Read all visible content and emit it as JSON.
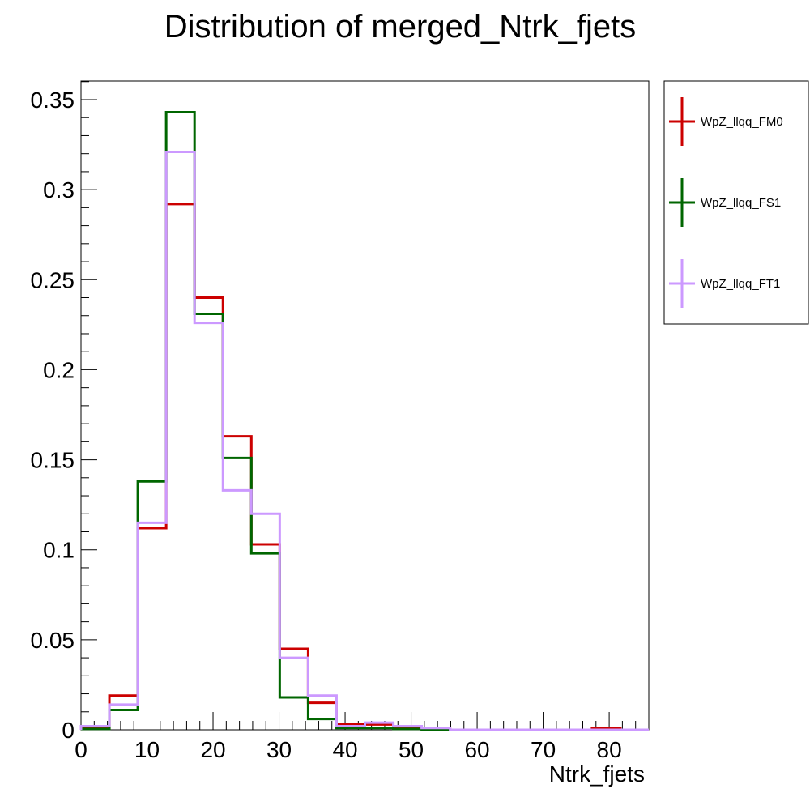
{
  "chart_data": {
    "type": "line",
    "step": true,
    "title": "Distribution of merged_Ntrk_fjets",
    "xlabel": "Ntrk_fjets",
    "ylabel": "",
    "xlim": [
      0,
      86
    ],
    "ylim": [
      0,
      0.36
    ],
    "x_ticks": [
      0,
      10,
      20,
      30,
      40,
      50,
      60,
      70,
      80
    ],
    "x_tick_labels": [
      "0",
      "10",
      "20",
      "30",
      "40",
      "50",
      "60",
      "70",
      "80"
    ],
    "y_ticks": [
      0,
      0.05,
      0.1,
      0.15,
      0.2,
      0.25,
      0.3,
      0.35
    ],
    "y_tick_labels": [
      "0",
      "0.05",
      "0.1",
      "0.15",
      "0.2",
      "0.25",
      "0.3",
      "0.35"
    ],
    "bin_edges": [
      0,
      4.3,
      8.6,
      12.9,
      17.2,
      21.5,
      25.8,
      30.1,
      34.4,
      38.7,
      43.0,
      47.3,
      51.6,
      55.9,
      60.2,
      64.5,
      68.8,
      73.1,
      77.4,
      81.7,
      86.0
    ],
    "legend_position": "right-outside-top",
    "grid": false,
    "series": [
      {
        "name": "WpZ_llqq_FM0",
        "color": "#cc0000",
        "values": [
          0.001,
          0.019,
          0.112,
          0.292,
          0.24,
          0.163,
          0.103,
          0.045,
          0.015,
          0.003,
          0.003,
          0.001,
          0.0005,
          0,
          0,
          0,
          0,
          0,
          0.001,
          0
        ]
      },
      {
        "name": "WpZ_llqq_FS1",
        "color": "#006600",
        "values": [
          0.0005,
          0.011,
          0.138,
          0.343,
          0.231,
          0.151,
          0.098,
          0.018,
          0.006,
          0.001,
          0.001,
          0.0005,
          0,
          0,
          0,
          0,
          0,
          0,
          0,
          0
        ]
      },
      {
        "name": "WpZ_llqq_FT1",
        "color": "#cc99ff",
        "values": [
          0.002,
          0.014,
          0.115,
          0.321,
          0.226,
          0.133,
          0.12,
          0.04,
          0.019,
          0.002,
          0.004,
          0.002,
          0.001,
          0,
          0,
          0,
          0,
          0,
          0,
          0
        ]
      }
    ]
  }
}
